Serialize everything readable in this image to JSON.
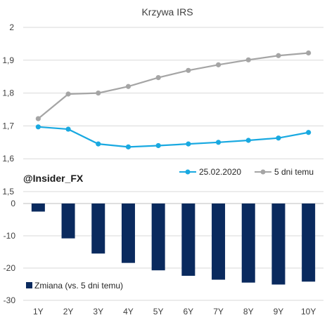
{
  "chart_data": [
    {
      "type": "line",
      "title": "Krzywa IRS",
      "categories": [
        "1Y",
        "2Y",
        "3Y",
        "4Y",
        "5Y",
        "6Y",
        "7Y",
        "8Y",
        "9Y",
        "10Y"
      ],
      "ylim": [
        1.5,
        2.0
      ],
      "yticks": [
        "1,5",
        "1,6",
        "1,7",
        "1,8",
        "1,9",
        "2"
      ],
      "grid": true,
      "legend_position": "bottom-right",
      "series": [
        {
          "name": "25.02.2020",
          "color": "#19a9e1",
          "values": [
            1.697,
            1.69,
            1.645,
            1.636,
            1.64,
            1.645,
            1.65,
            1.656,
            1.663,
            1.68
          ]
        },
        {
          "name": "5 dni temu",
          "color": "#a5a5a5",
          "values": [
            1.722,
            1.797,
            1.8,
            1.82,
            1.847,
            1.869,
            1.886,
            1.901,
            1.914,
            1.922
          ]
        }
      ]
    },
    {
      "type": "bar",
      "categories": [
        "1Y",
        "2Y",
        "3Y",
        "4Y",
        "5Y",
        "6Y",
        "7Y",
        "8Y",
        "9Y",
        "10Y"
      ],
      "ylim": [
        -30,
        0
      ],
      "yticks": [
        "0",
        "-10",
        "-20",
        "-30"
      ],
      "grid": true,
      "legend_position": "bottom-left",
      "series": [
        {
          "name": "Zmiana (vs. 5 dni temu)",
          "color": "#0a2a5e",
          "values": [
            -2.5,
            -10.8,
            -15.5,
            -18.4,
            -20.7,
            -22.4,
            -23.6,
            -24.5,
            -25.1,
            -24.2
          ]
        }
      ]
    }
  ],
  "watermark": "@Insider_FX"
}
